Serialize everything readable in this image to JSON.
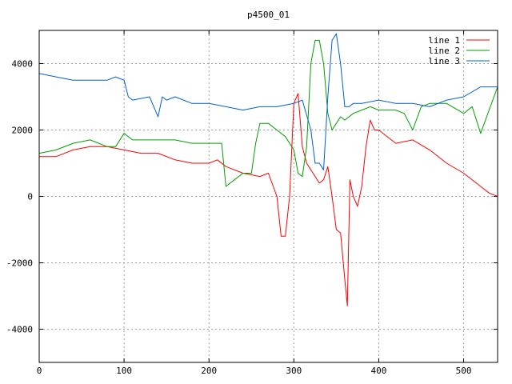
{
  "chart_data": {
    "type": "line",
    "title": "p4500_01",
    "xlabel": "",
    "ylabel": "",
    "xlim": [
      0,
      540
    ],
    "ylim": [
      -5000,
      5000
    ],
    "x_ticks": [
      0,
      100,
      200,
      300,
      400,
      500
    ],
    "y_ticks": [
      -4000,
      -2000,
      0,
      2000,
      4000
    ],
    "grid": true,
    "legend_position": "top-right",
    "series": [
      {
        "name": "line 1",
        "color": "#ff0000",
        "x": [
          0,
          20,
          40,
          60,
          80,
          100,
          120,
          140,
          160,
          180,
          200,
          210,
          220,
          240,
          260,
          270,
          280,
          285,
          290,
          295,
          300,
          305,
          310,
          315,
          320,
          325,
          330,
          335,
          340,
          345,
          350,
          355,
          360,
          363,
          366,
          370,
          375,
          380,
          385,
          390,
          395,
          400,
          420,
          440,
          460,
          480,
          500,
          520,
          530,
          540
        ],
        "y": [
          1200,
          1200,
          1400,
          1500,
          1500,
          1400,
          1300,
          1300,
          1100,
          1000,
          1000,
          1100,
          900,
          700,
          600,
          700,
          0,
          -1200,
          -1200,
          0,
          2800,
          3100,
          1500,
          1000,
          800,
          600,
          400,
          500,
          900,
          0,
          -1000,
          -1100,
          -2500,
          -3300,
          500,
          0,
          -300,
          300,
          1500,
          2300,
          2000,
          2000,
          1600,
          1700,
          1400,
          1000,
          700,
          300,
          100,
          0
        ]
      },
      {
        "name": "line 2",
        "color": "#00a000",
        "x": [
          0,
          20,
          40,
          60,
          80,
          90,
          100,
          110,
          140,
          160,
          180,
          200,
          215,
          220,
          230,
          240,
          250,
          255,
          260,
          270,
          280,
          290,
          300,
          305,
          310,
          315,
          320,
          325,
          330,
          335,
          340,
          345,
          350,
          355,
          360,
          370,
          380,
          390,
          400,
          420,
          430,
          440,
          450,
          460,
          480,
          500,
          510,
          520,
          530,
          540
        ],
        "y": [
          1300,
          1400,
          1600,
          1700,
          1500,
          1500,
          1900,
          1700,
          1700,
          1700,
          1600,
          1600,
          1600,
          300,
          500,
          700,
          700,
          1600,
          2200,
          2200,
          2000,
          1800,
          1400,
          700,
          600,
          1500,
          4000,
          4700,
          4700,
          4000,
          2500,
          2000,
          2200,
          2400,
          2300,
          2500,
          2600,
          2700,
          2600,
          2600,
          2500,
          2000,
          2700,
          2800,
          2800,
          2500,
          2700,
          1900,
          2600,
          3300
        ]
      },
      {
        "name": "line 3",
        "color": "#0060d0",
        "x": [
          0,
          20,
          40,
          60,
          80,
          90,
          100,
          105,
          110,
          130,
          140,
          145,
          150,
          160,
          180,
          200,
          220,
          240,
          260,
          280,
          300,
          310,
          320,
          325,
          330,
          335,
          340,
          345,
          350,
          355,
          360,
          365,
          370,
          380,
          400,
          420,
          440,
          460,
          480,
          500,
          520,
          540
        ],
        "y": [
          3700,
          3600,
          3500,
          3500,
          3500,
          3600,
          3500,
          3000,
          2900,
          3000,
          2400,
          3000,
          2900,
          3000,
          2800,
          2800,
          2700,
          2600,
          2700,
          2700,
          2800,
          2900,
          2000,
          1000,
          1000,
          800,
          3000,
          4700,
          4900,
          4000,
          2700,
          2700,
          2800,
          2800,
          2900,
          2800,
          2800,
          2700,
          2900,
          3000,
          3300,
          3300
        ]
      }
    ]
  }
}
